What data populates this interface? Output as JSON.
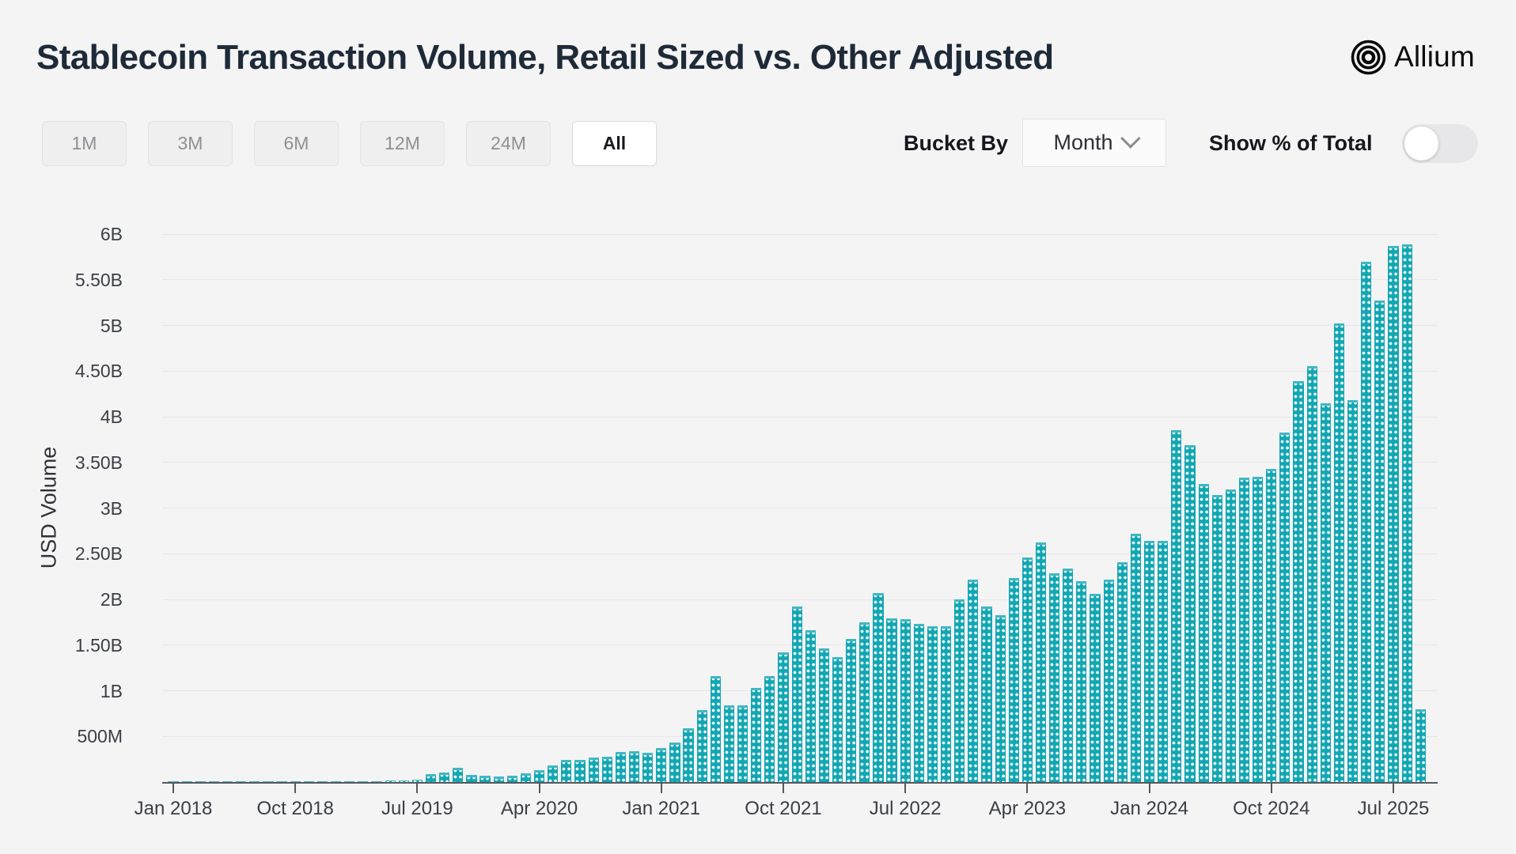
{
  "header": {
    "title": "Stablecoin Transaction Volume, Retail Sized vs. Other Adjusted",
    "brand": "Allium"
  },
  "controls": {
    "range_buttons": [
      {
        "label": "1M",
        "active": false
      },
      {
        "label": "3M",
        "active": false
      },
      {
        "label": "6M",
        "active": false
      },
      {
        "label": "12M",
        "active": false
      },
      {
        "label": "24M",
        "active": false
      },
      {
        "label": "All",
        "active": true
      }
    ],
    "bucket_by": {
      "label": "Bucket By",
      "value": "Month"
    },
    "show_pct_toggle": {
      "label": "Show % of Total",
      "enabled": false
    }
  },
  "chart_data": {
    "type": "bar",
    "title": "Stablecoin Transaction Volume, Retail Sized vs. Other Adjusted",
    "xlabel": "",
    "ylabel": "USD Volume",
    "ylim_billions": [
      0,
      6
    ],
    "grid": true,
    "legend": "none",
    "bar_color": "#12a7b3",
    "bar_pattern": "white-dot-matrix",
    "y_tick_labels": [
      "500M",
      "1B",
      "1.50B",
      "2B",
      "2.50B",
      "3B",
      "3.50B",
      "4B",
      "4.50B",
      "5B",
      "5.50B",
      "6B"
    ],
    "y_tick_values_billions": [
      0.5,
      1,
      1.5,
      2,
      2.5,
      3,
      3.5,
      4,
      4.5,
      5,
      5.5,
      6
    ],
    "x_tick_labels": [
      "Jan 2018",
      "Oct 2018",
      "Jul 2019",
      "Apr 2020",
      "Jan 2021",
      "Oct 2021",
      "Jul 2022",
      "Apr 2023",
      "Jan 2024",
      "Oct 2024",
      "Jul 2025"
    ],
    "x_tick_month_indices": [
      0,
      9,
      18,
      27,
      36,
      45,
      54,
      63,
      72,
      81,
      90
    ],
    "categories": [
      "Jan 2018",
      "Feb 2018",
      "Mar 2018",
      "Apr 2018",
      "May 2018",
      "Jun 2018",
      "Jul 2018",
      "Aug 2018",
      "Sep 2018",
      "Oct 2018",
      "Nov 2018",
      "Dec 2018",
      "Jan 2019",
      "Feb 2019",
      "Mar 2019",
      "Apr 2019",
      "May 2019",
      "Jun 2019",
      "Jul 2019",
      "Aug 2019",
      "Sep 2019",
      "Oct 2019",
      "Nov 2019",
      "Dec 2019",
      "Jan 2020",
      "Feb 2020",
      "Mar 2020",
      "Apr 2020",
      "May 2020",
      "Jun 2020",
      "Jul 2020",
      "Aug 2020",
      "Sep 2020",
      "Oct 2020",
      "Nov 2020",
      "Dec 2020",
      "Jan 2021",
      "Feb 2021",
      "Mar 2021",
      "Apr 2021",
      "May 2021",
      "Jun 2021",
      "Jul 2021",
      "Aug 2021",
      "Sep 2021",
      "Oct 2021",
      "Nov 2021",
      "Dec 2021",
      "Jan 2022",
      "Feb 2022",
      "Mar 2022",
      "Apr 2022",
      "May 2022",
      "Jun 2022",
      "Jul 2022",
      "Aug 2022",
      "Sep 2022",
      "Oct 2022",
      "Nov 2022",
      "Dec 2022",
      "Jan 2023",
      "Feb 2023",
      "Mar 2023",
      "Apr 2023",
      "May 2023",
      "Jun 2023",
      "Jul 2023",
      "Aug 2023",
      "Sep 2023",
      "Oct 2023",
      "Nov 2023",
      "Dec 2023",
      "Jan 2024",
      "Feb 2024",
      "Mar 2024",
      "Apr 2024",
      "May 2024",
      "Jun 2024",
      "Jul 2024",
      "Aug 2024",
      "Sep 2024",
      "Oct 2024",
      "Nov 2024",
      "Dec 2024",
      "Jan 2025",
      "Feb 2025",
      "Mar 2025",
      "Apr 2025",
      "May 2025",
      "Jun 2025",
      "Jul 2025",
      "Aug 2025",
      "Sep 2025"
    ],
    "values_billions": [
      0.002,
      0.002,
      0.003,
      0.003,
      0.004,
      0.004,
      0.005,
      0.005,
      0.006,
      0.007,
      0.007,
      0.008,
      0.008,
      0.009,
      0.01,
      0.012,
      0.014,
      0.018,
      0.025,
      0.085,
      0.1,
      0.155,
      0.08,
      0.07,
      0.065,
      0.07,
      0.095,
      0.13,
      0.18,
      0.24,
      0.24,
      0.27,
      0.28,
      0.33,
      0.34,
      0.32,
      0.37,
      0.43,
      0.59,
      0.79,
      1.16,
      0.84,
      0.84,
      1.03,
      1.16,
      1.42,
      1.92,
      1.66,
      1.46,
      1.37,
      1.57,
      1.75,
      2.07,
      1.79,
      1.78,
      1.73,
      1.71,
      1.71,
      2.0,
      2.22,
      1.92,
      1.83,
      2.23,
      2.46,
      2.62,
      2.29,
      2.34,
      2.2,
      2.06,
      2.22,
      2.41,
      2.72,
      2.64,
      2.64,
      3.85,
      3.69,
      3.26,
      3.14,
      3.2,
      3.33,
      3.34,
      3.43,
      3.83,
      4.39,
      4.55,
      4.15,
      5.02,
      4.18,
      5.7,
      5.27,
      5.87,
      5.89,
      0.8
    ]
  }
}
